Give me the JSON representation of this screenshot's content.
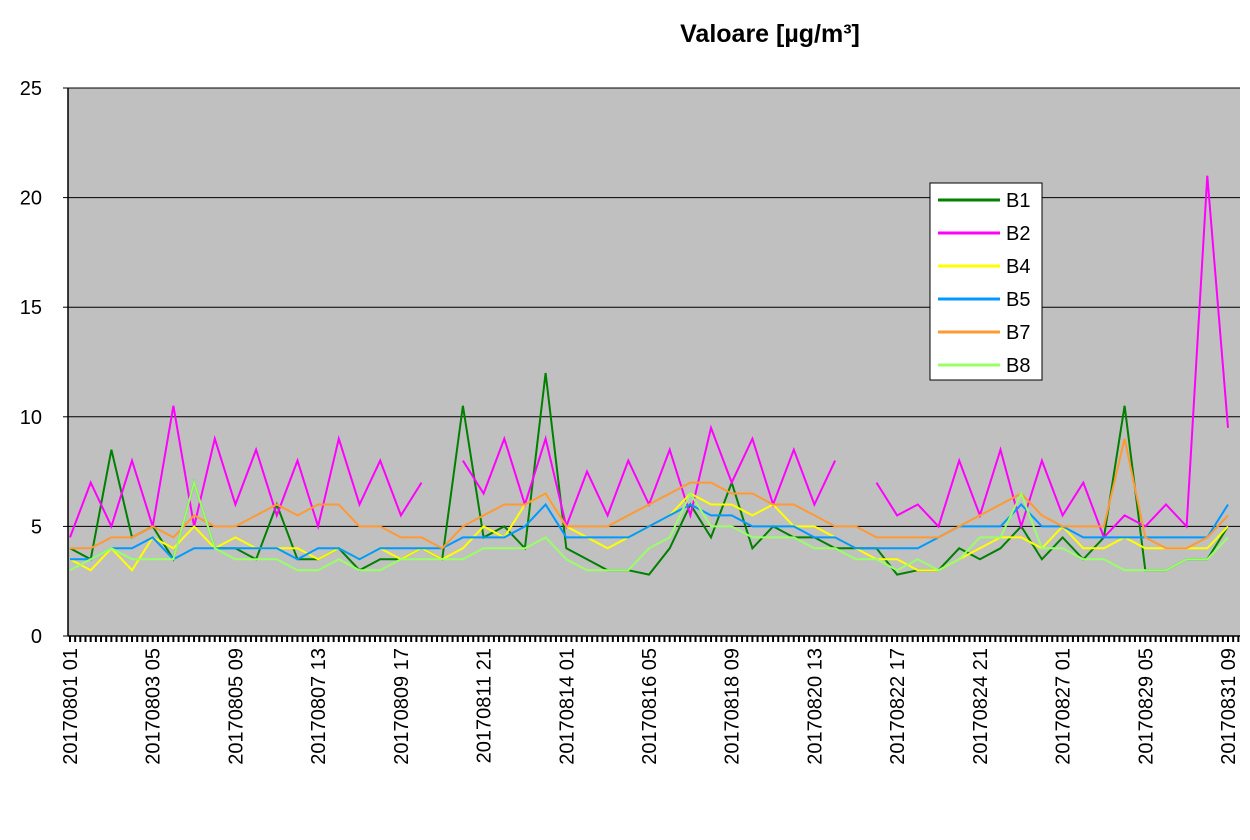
{
  "chart_data": {
    "type": "line",
    "title": "Valoare [µg/m³]",
    "categories": [
      "20170801 01",
      null,
      null,
      null,
      "20170803 05",
      null,
      null,
      null,
      "20170805 09",
      null,
      null,
      null,
      "20170807 13",
      null,
      null,
      null,
      "20170809 17",
      null,
      null,
      null,
      "20170811 21",
      null,
      null,
      null,
      "20170814 01",
      null,
      null,
      null,
      "20170816 05",
      null,
      null,
      null,
      "20170818 09",
      null,
      null,
      null,
      "20170820 13",
      null,
      null,
      null,
      "20170822 17",
      null,
      null,
      null,
      "20170824 21",
      null,
      null,
      null,
      "20170827 01",
      null,
      null,
      null,
      "20170829 05",
      null,
      null,
      null,
      "20170831 09"
    ],
    "series": [
      {
        "name": "B1",
        "color": "#008000",
        "values": [
          4,
          3.5,
          8.5,
          4.5,
          5,
          3.5,
          7,
          4,
          4,
          3.5,
          6,
          3.5,
          3.5,
          4,
          3,
          3.5,
          3.5,
          4,
          3.5,
          10.5,
          4.5,
          5,
          4,
          12,
          4,
          3.5,
          3,
          3,
          2.8,
          4,
          6,
          4.5,
          7,
          4,
          5,
          4.5,
          4.5,
          4,
          4,
          4,
          2.8,
          3,
          3,
          4,
          3.5,
          4,
          5,
          3.5,
          4.5,
          3.5,
          4.5,
          10.5,
          3,
          3,
          3.5,
          3.5,
          5
        ]
      },
      {
        "name": "B2",
        "color": "#ff00ff",
        "values": [
          4.5,
          7,
          5,
          8,
          5,
          10.5,
          5,
          9,
          6,
          8.5,
          5.5,
          8,
          5,
          9,
          6,
          8,
          5.5,
          7,
          null,
          8,
          6.5,
          9,
          6,
          9,
          5,
          7.5,
          5.5,
          8,
          6,
          8.5,
          5.5,
          9.5,
          7,
          9,
          6,
          8.5,
          6,
          8,
          null,
          7,
          5.5,
          6,
          5,
          8,
          5.5,
          8.5,
          5,
          8,
          5.5,
          7,
          4.5,
          5.5,
          5,
          6,
          5,
          21,
          9.5
        ]
      },
      {
        "name": "B4",
        "color": "#ffff00",
        "values": [
          3.5,
          3,
          4,
          3,
          4.5,
          4,
          5,
          4,
          4.5,
          4,
          4,
          4,
          3.5,
          4,
          3.5,
          4,
          3.5,
          4,
          3.5,
          4,
          5,
          4.5,
          6,
          6.5,
          5,
          4.5,
          4,
          4.5,
          5,
          5.5,
          6.5,
          6,
          6,
          5.5,
          6,
          5,
          5,
          4.5,
          4,
          3.5,
          3.5,
          3,
          3,
          3.5,
          4,
          4.5,
          4.5,
          4,
          5,
          4,
          4,
          4.5,
          4,
          4,
          4,
          4,
          5
        ]
      },
      {
        "name": "B5",
        "color": "#0099ff",
        "values": [
          3.5,
          3.5,
          4,
          4,
          4.5,
          3.5,
          4,
          4,
          4,
          4,
          4,
          3.5,
          4,
          4,
          3.5,
          4,
          4,
          4,
          4,
          4.5,
          4.5,
          4.5,
          5,
          6,
          4.5,
          4.5,
          4.5,
          4.5,
          5,
          5.5,
          6,
          5.5,
          5.5,
          5,
          5,
          5,
          4.5,
          4.5,
          4,
          4,
          4,
          4,
          4.5,
          5,
          5,
          5,
          6,
          5,
          5,
          4.5,
          4.5,
          4.5,
          4.5,
          4.5,
          4.5,
          4.5,
          6
        ]
      },
      {
        "name": "B7",
        "color": "#ff9933",
        "values": [
          4,
          4,
          4.5,
          4.5,
          5,
          4.5,
          5.5,
          5,
          5,
          5.5,
          6,
          5.5,
          6,
          6,
          5,
          5,
          4.5,
          4.5,
          4,
          5,
          5.5,
          6,
          6,
          6.5,
          5,
          5,
          5,
          5.5,
          6,
          6.5,
          7,
          7,
          6.5,
          6.5,
          6,
          6,
          5.5,
          5,
          5,
          4.5,
          4.5,
          4.5,
          4.5,
          5,
          5.5,
          6,
          6.5,
          5.5,
          5,
          5,
          5,
          9,
          4.5,
          4,
          4,
          4.5,
          5.5
        ]
      },
      {
        "name": "B8",
        "color": "#99ff66",
        "values": [
          3,
          3.5,
          4,
          3.5,
          3.5,
          3.5,
          7,
          4,
          3.5,
          3.5,
          3.5,
          3,
          3,
          3.5,
          3,
          3,
          3.5,
          3.5,
          3.5,
          3.5,
          4,
          4,
          4,
          4.5,
          3.5,
          3,
          3,
          3,
          4,
          4.5,
          6.5,
          5,
          5,
          4.5,
          4.5,
          4.5,
          4,
          4,
          3.5,
          3.5,
          3,
          3.5,
          3,
          3.5,
          4.5,
          4.5,
          6.5,
          4,
          4,
          3.5,
          3.5,
          3,
          3,
          3,
          3.5,
          3.5,
          4.5
        ]
      }
    ],
    "ylim": [
      0,
      25
    ],
    "yticks": [
      0,
      5,
      10,
      15,
      20,
      25
    ],
    "grid": true,
    "legend": "upper right"
  }
}
